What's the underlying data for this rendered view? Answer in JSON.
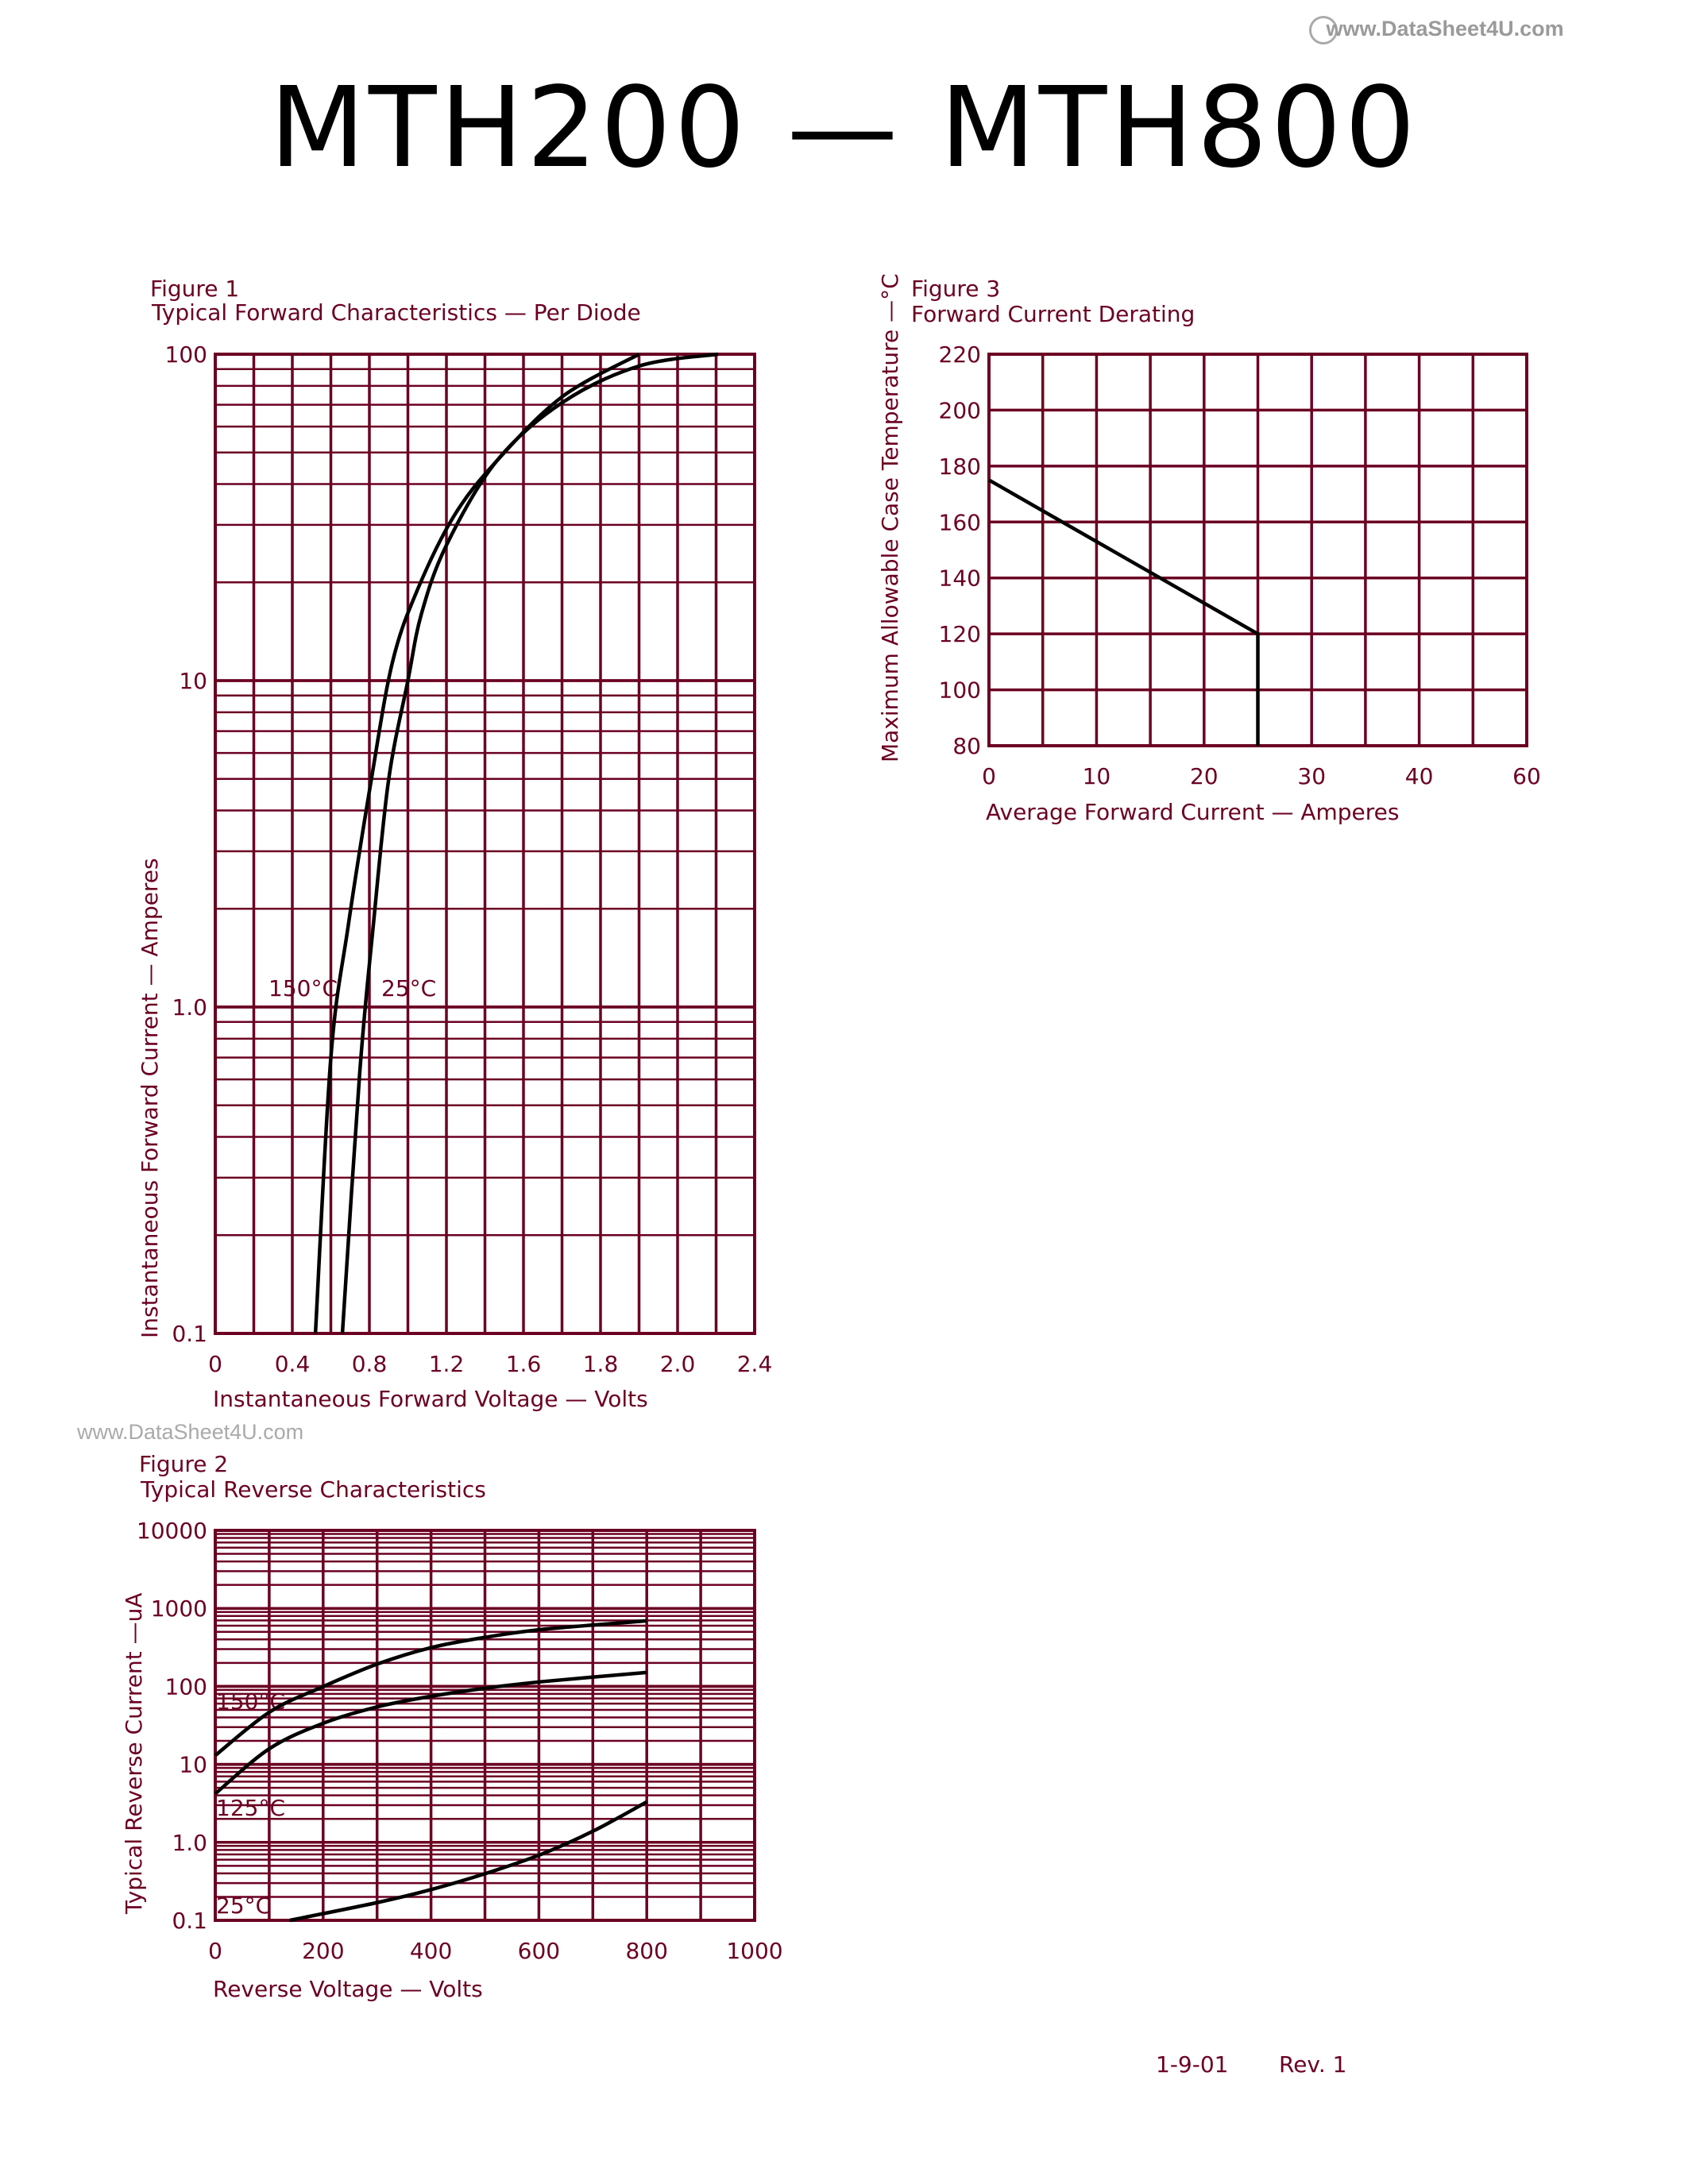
{
  "header": {
    "title": "MTH200  —  MTH800",
    "watermark": "www.DataSheet4U.com"
  },
  "watermark_left": "www.DataSheet4U.com",
  "footer": {
    "date": "1-9-01",
    "rev": "Rev. 1"
  },
  "colors": {
    "grid": "#6b0022",
    "curve": "#000000",
    "text": "#6b0022"
  },
  "chart_data": [
    {
      "id": "fig1",
      "type": "line",
      "figure_label": "Figure 1",
      "title": "Typical Forward Characteristics — Per Diode",
      "xlabel": "Instantaneous Forward Voltage — Volts",
      "ylabel": "Instantaneous Forward Current — Amperes",
      "x_ticks": [
        "0",
        "0.4",
        "0.8",
        "1.2",
        "1.6",
        "1.8",
        "2.0",
        "2.4"
      ],
      "y_ticks": [
        "100",
        "10",
        "1.0",
        "0.1"
      ],
      "y_scale": "log",
      "ylim": [
        0.1,
        100
      ],
      "xlim": [
        0,
        2.4
      ],
      "grid": true,
      "series": [
        {
          "name": "150°C",
          "x": [
            0.52,
            0.6,
            0.69,
            0.81,
            0.92,
            1.05,
            1.24,
            1.46,
            1.7,
            1.9
          ],
          "y": [
            0.1,
            0.7,
            1.77,
            4.97,
            11.4,
            19,
            32,
            47,
            74,
            100
          ]
        },
        {
          "name": "25°C",
          "x": [
            0.66,
            0.75,
            0.82,
            0.9,
            1.0,
            1.07,
            1.2,
            1.46,
            1.7,
            1.9,
            2.21
          ],
          "y": [
            0.1,
            0.63,
            1.77,
            4.97,
            10,
            16,
            26,
            47,
            71,
            92,
            100
          ]
        }
      ]
    },
    {
      "id": "fig2",
      "type": "line",
      "figure_label": "Figure 2",
      "title": "Typical Reverse Characteristics",
      "xlabel": "Reverse Voltage — Volts",
      "ylabel": "Typical Reverse Current —uA",
      "x_ticks": [
        "0",
        "200",
        "400",
        "600",
        "800",
        "1000"
      ],
      "y_ticks": [
        "10000",
        "1000",
        "100",
        "10",
        "1.0",
        "0.1"
      ],
      "y_scale": "log",
      "ylim": [
        0.1,
        10000
      ],
      "xlim": [
        0,
        1000
      ],
      "grid": true,
      "series": [
        {
          "name": "150°C",
          "x": [
            0,
            101,
            198,
            302,
            402,
            502,
            606,
            800
          ],
          "y": [
            13,
            47,
            98,
            195,
            316,
            427,
            537,
            692
          ]
        },
        {
          "name": "125°C",
          "x": [
            0,
            101,
            202,
            302,
            402,
            502,
            606,
            800
          ],
          "y": [
            4.2,
            16,
            34,
            55,
            75,
            95,
            115,
            151
          ]
        },
        {
          "name": "25°C",
          "x": [
            138,
            302,
            402,
            502,
            606,
            702,
            800
          ],
          "y": [
            0.1,
            0.17,
            0.25,
            0.4,
            0.71,
            1.41,
            3.3
          ]
        }
      ]
    },
    {
      "id": "fig3",
      "type": "line",
      "figure_label": "Figure 3",
      "title": "Forward Current Derating",
      "xlabel": "Average Forward Current — Amperes",
      "ylabel": "Maximum Allowable Case Temperature —°C",
      "x_ticks": [
        "0",
        "10",
        "20",
        "30",
        "40",
        "60"
      ],
      "y_ticks": [
        "220",
        "200",
        "180",
        "160",
        "140",
        "120",
        "100",
        "80"
      ],
      "y_scale": "linear",
      "ylim": [
        80,
        220
      ],
      "grid": true,
      "series": [
        {
          "x": [
            0,
            25,
            25
          ],
          "y": [
            175,
            120,
            80
          ]
        }
      ]
    }
  ]
}
